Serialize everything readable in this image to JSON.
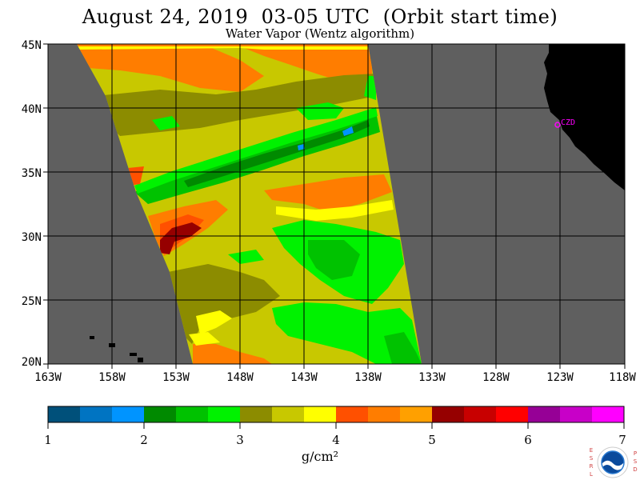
{
  "title": "August 24, 2019  03-05 UTC  (Orbit start time)",
  "subtitle": "Water Vapor (Wentz algorithm)",
  "map": {
    "lat_labels": [
      "45N",
      "40N",
      "35N",
      "30N",
      "25N",
      "20N"
    ],
    "lon_labels": [
      "163W",
      "158W",
      "153W",
      "148W",
      "143W",
      "138W",
      "133W",
      "128W",
      "123W",
      "118W"
    ],
    "station_label": "CZD",
    "station_color": "#ff00ff",
    "no_data_color": "#5f5f5f",
    "land_color": "#000000"
  },
  "colorbar": {
    "ticks": [
      "1",
      "2",
      "3",
      "4",
      "5",
      "6",
      "7"
    ],
    "units": "g/cm²",
    "colors": [
      "#00507a",
      "#0074c2",
      "#0094ff",
      "#008a00",
      "#00c200",
      "#00f200",
      "#8c8c00",
      "#c8c800",
      "#ffff00",
      "#ff5000",
      "#ff7d00",
      "#ffa000",
      "#960000",
      "#c80000",
      "#ff0000",
      "#960096",
      "#c800c8",
      "#ff00ff"
    ]
  },
  "logo": {
    "left_text": "ESRL",
    "right_text": "PSD",
    "center_text": "NOAA"
  }
}
